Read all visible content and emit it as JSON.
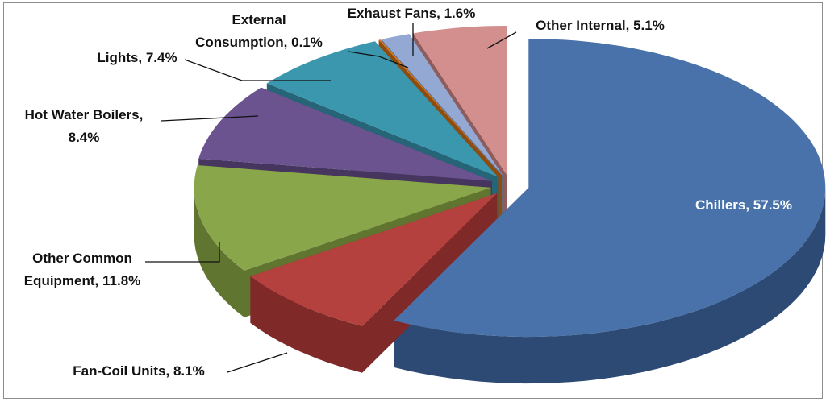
{
  "chart_data": {
    "type": "pie",
    "title": "",
    "slices": [
      {
        "name": "Chillers",
        "value": 57.5,
        "label": "Chillers, 57.5%",
        "color": "#4a72aa",
        "dark": "#2c4a74"
      },
      {
        "name": "Fan-Coil Units",
        "value": 8.1,
        "label": "Fan-Coil Units, 8.1%",
        "color": "#b5413f",
        "dark": "#7f2a28"
      },
      {
        "name": "Other Common Equipment",
        "value": 11.8,
        "label_lines": [
          "Other Common",
          "Equipment, 11.8%"
        ],
        "color": "#8aa64a",
        "dark": "#607530"
      },
      {
        "name": "Hot Water Boilers",
        "value": 8.4,
        "label_lines": [
          "Hot Water Boilers,",
          "8.4%"
        ],
        "color": "#6a538f",
        "dark": "#46365f"
      },
      {
        "name": "Lights",
        "value": 7.4,
        "label": "Lights, 7.4%",
        "color": "#3b97ae",
        "dark": "#256577"
      },
      {
        "name": "External Consumption",
        "value": 0.1,
        "label_lines": [
          "External",
          "Consumption, 0.1%"
        ],
        "color": "#d87a1e",
        "dark": "#8e4c0f"
      },
      {
        "name": "Exhaust Fans",
        "value": 1.6,
        "label": "Exhaust Fans, 1.6%",
        "color": "#93a9d4",
        "dark": "#5e6f92"
      },
      {
        "name": "Other Internal",
        "value": 5.1,
        "label": "Other Internal, 5.1%",
        "color": "#d28f8e",
        "dark": "#8f5c5b"
      }
    ]
  }
}
